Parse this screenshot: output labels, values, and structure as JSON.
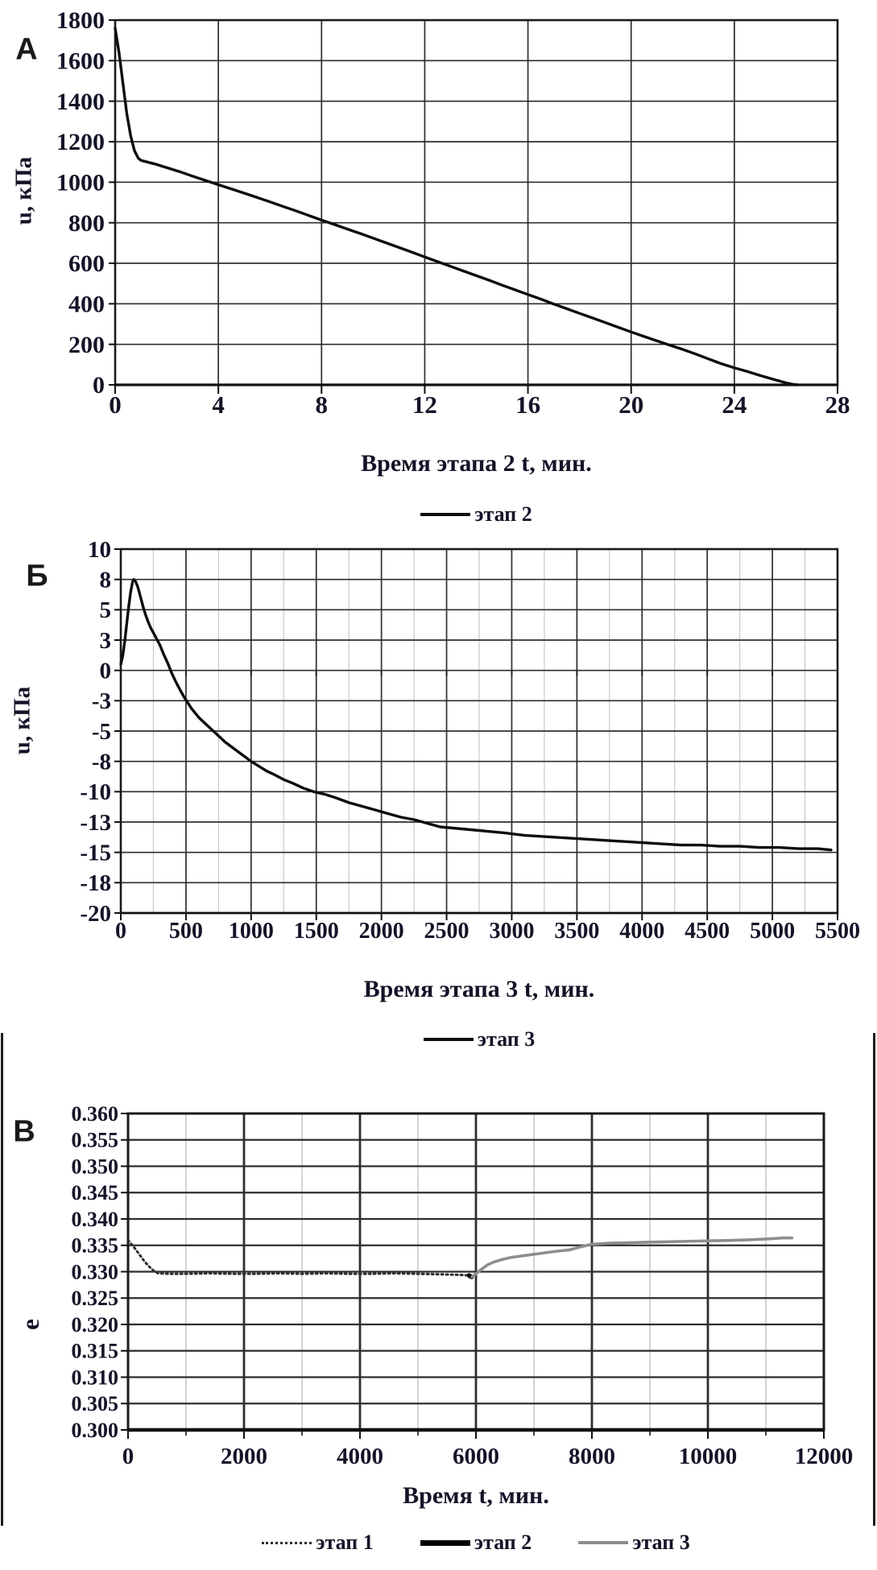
{
  "chart_data": [
    {
      "id": "stage2-pore-pressure",
      "type": "line",
      "panel_label": "А",
      "xlabel": "Время этапа 2 t, мин.",
      "ylabel": "u, кПа",
      "xlim": [
        0,
        28
      ],
      "ylim": [
        0,
        1800
      ],
      "grid": "major-both",
      "legend_position": "bottom",
      "xticks": {
        "values": [
          0,
          4,
          8,
          12,
          16,
          20,
          24,
          28
        ],
        "labels": [
          "0",
          "4",
          "8",
          "12",
          "16",
          "20",
          "24",
          "28"
        ]
      },
      "yticks": {
        "values": [
          1800,
          1600,
          1400,
          1200,
          1000,
          800,
          600,
          400,
          200,
          0
        ],
        "labels": [
          "1800",
          "1600",
          "1400",
          "1200",
          "1000",
          "800",
          "600",
          "400",
          "200",
          "0"
        ]
      },
      "legend": [
        {
          "label": "этап 2",
          "style": "solid-black"
        }
      ],
      "series": [
        {
          "name": "этап 2",
          "style": "solid-black",
          "points": [
            [
              0,
              1760
            ],
            [
              0.15,
              1640
            ],
            [
              0.3,
              1490
            ],
            [
              0.45,
              1340
            ],
            [
              0.6,
              1230
            ],
            [
              0.75,
              1155
            ],
            [
              0.9,
              1118
            ],
            [
              1,
              1108
            ],
            [
              1.3,
              1098
            ],
            [
              1.6,
              1088
            ],
            [
              2,
              1072
            ],
            [
              2.5,
              1052
            ],
            [
              3,
              1030
            ],
            [
              3.5,
              1009
            ],
            [
              4,
              988
            ],
            [
              4.5,
              967
            ],
            [
              5,
              946
            ],
            [
              5.5,
              925
            ],
            [
              6,
              903
            ],
            [
              6.5,
              881
            ],
            [
              7,
              859
            ],
            [
              7.5,
              836
            ],
            [
              8,
              813
            ],
            [
              8.5,
              791
            ],
            [
              9,
              769
            ],
            [
              9.5,
              747
            ],
            [
              10,
              724
            ],
            [
              10.5,
              701
            ],
            [
              11,
              678
            ],
            [
              11.5,
              655
            ],
            [
              12,
              631
            ],
            [
              12.5,
              608
            ],
            [
              13,
              585
            ],
            [
              13.5,
              562
            ],
            [
              14,
              539
            ],
            [
              14.5,
              516
            ],
            [
              15,
              492
            ],
            [
              15.5,
              469
            ],
            [
              16,
              446
            ],
            [
              16.5,
              423
            ],
            [
              17,
              399
            ],
            [
              17.5,
              376
            ],
            [
              18,
              353
            ],
            [
              18.5,
              330
            ],
            [
              19,
              307
            ],
            [
              19.5,
              284
            ],
            [
              20,
              261
            ],
            [
              20.5,
              239
            ],
            [
              21,
              217
            ],
            [
              21.5,
              196
            ],
            [
              22,
              175
            ],
            [
              22.5,
              152
            ],
            [
              23,
              128
            ],
            [
              23.5,
              104
            ],
            [
              24,
              84
            ],
            [
              24.5,
              66
            ],
            [
              25,
              46
            ],
            [
              25.5,
              28
            ],
            [
              26,
              10
            ],
            [
              26.3,
              2
            ],
            [
              26.45,
              0
            ]
          ]
        }
      ]
    },
    {
      "id": "stage3-pore-pressure",
      "type": "line",
      "panel_label": "Б",
      "xlabel": "Время этапа 3 t, мин.",
      "ylabel": "u, кПа",
      "xlim": [
        0,
        5500
      ],
      "ylim": [
        -20,
        10
      ],
      "grid": "major-both-minor-x",
      "x_minor_step": 250,
      "legend_position": "bottom",
      "xticks": {
        "values": [
          0,
          500,
          1000,
          1500,
          2000,
          2500,
          3000,
          3500,
          4000,
          4500,
          5000,
          5500
        ],
        "labels": [
          "0",
          "500",
          "1000",
          "1500",
          "2000",
          "2500",
          "3000",
          "3500",
          "4000",
          "4500",
          "5000",
          "5500"
        ]
      },
      "yticks": {
        "values": [
          10,
          7.5,
          5,
          2.5,
          0,
          -2.5,
          -5,
          -7.5,
          -10,
          -12.5,
          -15,
          -17.5,
          -20
        ],
        "labels": [
          "10",
          "8",
          "5",
          "3",
          "0",
          "-3",
          "-5",
          "-8",
          "-10",
          "-13",
          "-15",
          "-18",
          "-20"
        ]
      },
      "legend": [
        {
          "label": "этап 3",
          "style": "solid-black"
        }
      ],
      "series": [
        {
          "name": "этап 3",
          "style": "solid-black",
          "points": [
            [
              0,
              0.5
            ],
            [
              15,
              1.2
            ],
            [
              30,
              2.4
            ],
            [
              45,
              3.8
            ],
            [
              60,
              5.2
            ],
            [
              75,
              6.4
            ],
            [
              90,
              7.3
            ],
            [
              100,
              7.5
            ],
            [
              115,
              7.3
            ],
            [
              130,
              6.9
            ],
            [
              145,
              6.3
            ],
            [
              160,
              5.7
            ],
            [
              175,
              5.1
            ],
            [
              190,
              4.6
            ],
            [
              210,
              4.0
            ],
            [
              230,
              3.5
            ],
            [
              250,
              3.1
            ],
            [
              270,
              2.7
            ],
            [
              300,
              2.1
            ],
            [
              330,
              1.3
            ],
            [
              360,
              0.6
            ],
            [
              390,
              -0.2
            ],
            [
              420,
              -0.9
            ],
            [
              450,
              -1.5
            ],
            [
              480,
              -2.1
            ],
            [
              510,
              -2.6
            ],
            [
              540,
              -3.1
            ],
            [
              570,
              -3.5
            ],
            [
              600,
              -3.9
            ],
            [
              640,
              -4.3
            ],
            [
              680,
              -4.7
            ],
            [
              720,
              -5.1
            ],
            [
              760,
              -5.5
            ],
            [
              800,
              -5.9
            ],
            [
              850,
              -6.3
            ],
            [
              900,
              -6.7
            ],
            [
              950,
              -7.1
            ],
            [
              1000,
              -7.5
            ],
            [
              1060,
              -7.9
            ],
            [
              1120,
              -8.3
            ],
            [
              1180,
              -8.6
            ],
            [
              1250,
              -9.0
            ],
            [
              1320,
              -9.3
            ],
            [
              1400,
              -9.7
            ],
            [
              1480,
              -10.0
            ],
            [
              1560,
              -10.2
            ],
            [
              1650,
              -10.5
            ],
            [
              1750,
              -10.9
            ],
            [
              1850,
              -11.2
            ],
            [
              1950,
              -11.5
            ],
            [
              2050,
              -11.8
            ],
            [
              2150,
              -12.1
            ],
            [
              2250,
              -12.3
            ],
            [
              2350,
              -12.6
            ],
            [
              2450,
              -12.9
            ],
            [
              2550,
              -13.0
            ],
            [
              2650,
              -13.1
            ],
            [
              2750,
              -13.2
            ],
            [
              2850,
              -13.3
            ],
            [
              2950,
              -13.4
            ],
            [
              3100,
              -13.6
            ],
            [
              3250,
              -13.7
            ],
            [
              3400,
              -13.8
            ],
            [
              3550,
              -13.9
            ],
            [
              3700,
              -14.0
            ],
            [
              3850,
              -14.1
            ],
            [
              4000,
              -14.2
            ],
            [
              4150,
              -14.3
            ],
            [
              4300,
              -14.4
            ],
            [
              4450,
              -14.4
            ],
            [
              4600,
              -14.5
            ],
            [
              4750,
              -14.5
            ],
            [
              4900,
              -14.6
            ],
            [
              5050,
              -14.6
            ],
            [
              5200,
              -14.7
            ],
            [
              5350,
              -14.7
            ],
            [
              5450,
              -14.8
            ]
          ]
        }
      ]
    },
    {
      "id": "void-ratio-vs-time",
      "type": "line",
      "panel_label": "В",
      "xlabel": "Время t, мин.",
      "ylabel": "е",
      "xlim": [
        0,
        12000
      ],
      "ylim": [
        0.3,
        0.36
      ],
      "grid": "major-both-minor-x",
      "x_minor_step": 1000,
      "legend_position": "bottom",
      "xticks": {
        "values": [
          0,
          2000,
          4000,
          6000,
          8000,
          10000,
          12000
        ],
        "labels": [
          "0",
          "2000",
          "4000",
          "6000",
          "8000",
          "10000",
          "12000"
        ]
      },
      "yticks": {
        "values": [
          0.36,
          0.355,
          0.35,
          0.345,
          0.34,
          0.335,
          0.33,
          0.325,
          0.32,
          0.315,
          0.31,
          0.305,
          0.3
        ],
        "labels": [
          "0.360",
          "0.355",
          "0.350",
          "0.345",
          "0.340",
          "0.335",
          "0.330",
          "0.325",
          "0.320",
          "0.315",
          "0.310",
          "0.305",
          "0.300"
        ]
      },
      "legend": [
        {
          "label": "этап 1",
          "style": "dotted-black"
        },
        {
          "label": "этап 2",
          "style": "thick-black"
        },
        {
          "label": "этап 3",
          "style": "solid-gray"
        }
      ],
      "series": [
        {
          "name": "этап 1",
          "style": "dotted-black",
          "points": [
            [
              0,
              0.336
            ],
            [
              60,
              0.3352
            ],
            [
              120,
              0.3344
            ],
            [
              200,
              0.3332
            ],
            [
              280,
              0.332
            ],
            [
              360,
              0.331
            ],
            [
              440,
              0.3302
            ],
            [
              520,
              0.3297
            ],
            [
              700,
              0.3296
            ],
            [
              1000,
              0.3296
            ],
            [
              1400,
              0.3297
            ],
            [
              1800,
              0.3296
            ],
            [
              2200,
              0.3296
            ],
            [
              2600,
              0.3297
            ],
            [
              3000,
              0.3296
            ],
            [
              3400,
              0.3297
            ],
            [
              3800,
              0.3296
            ],
            [
              4200,
              0.3296
            ],
            [
              4600,
              0.3297
            ],
            [
              5000,
              0.3296
            ],
            [
              5400,
              0.3295
            ],
            [
              5700,
              0.3294
            ],
            [
              5880,
              0.3293
            ]
          ]
        },
        {
          "name": "этап 2",
          "style": "thick-black",
          "points": [
            [
              5880,
              0.3293
            ],
            [
              5905,
              0.3291
            ],
            [
              5926,
              0.329
            ]
          ]
        },
        {
          "name": "этап 3",
          "style": "solid-gray",
          "points": [
            [
              5930,
              0.329
            ],
            [
              6000,
              0.3296
            ],
            [
              6100,
              0.3305
            ],
            [
              6200,
              0.3313
            ],
            [
              6300,
              0.3318
            ],
            [
              6450,
              0.3323
            ],
            [
              6600,
              0.3327
            ],
            [
              6800,
              0.333
            ],
            [
              7000,
              0.3333
            ],
            [
              7200,
              0.3336
            ],
            [
              7400,
              0.3339
            ],
            [
              7600,
              0.3341
            ],
            [
              7800,
              0.3347
            ],
            [
              8000,
              0.3352
            ],
            [
              8300,
              0.3354
            ],
            [
              8600,
              0.3355
            ],
            [
              9000,
              0.3356
            ],
            [
              9400,
              0.3357
            ],
            [
              9800,
              0.3358
            ],
            [
              10200,
              0.3359
            ],
            [
              10600,
              0.336
            ],
            [
              11000,
              0.3362
            ],
            [
              11300,
              0.3364
            ],
            [
              11450,
              0.3364
            ]
          ]
        }
      ]
    }
  ]
}
